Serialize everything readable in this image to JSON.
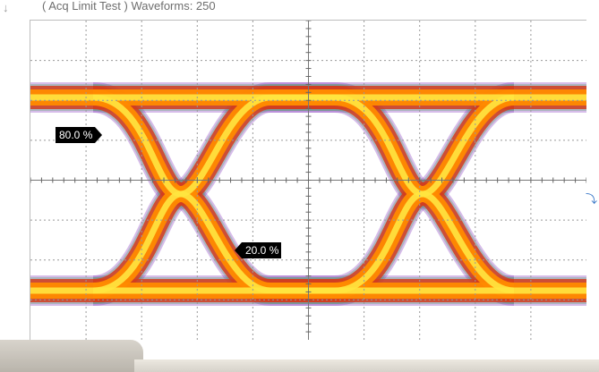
{
  "status": {
    "text": "( Acq Limit Test )  Waveforms: 250"
  },
  "labels": {
    "upper_threshold": "80.0 %",
    "lower_threshold": "20.0 %"
  },
  "colors": {
    "background": "#ffffff",
    "grid": "#999999",
    "eye_core": "#ffe640",
    "eye_mid": "#ff8a00",
    "eye_outer": "#d23c1e",
    "eye_fringe": "#8a40c0",
    "eye_fringe2": "#2ca040",
    "label_bg": "#000000",
    "label_text": "#ffffff"
  },
  "icons": {
    "status_arrow": "down-arrow-icon",
    "trigger_marker": "trigger-level-icon"
  }
}
